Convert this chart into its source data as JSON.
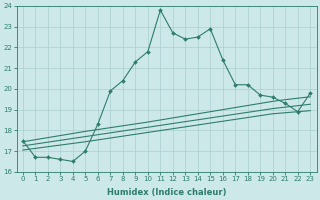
{
  "xlabel": "Humidex (Indice chaleur)",
  "x_values": [
    0,
    1,
    2,
    3,
    4,
    5,
    6,
    7,
    8,
    9,
    10,
    11,
    12,
    13,
    14,
    15,
    16,
    17,
    18,
    19,
    20,
    21,
    22,
    23
  ],
  "main_line": [
    17.5,
    16.7,
    16.7,
    16.6,
    16.5,
    17.0,
    18.3,
    19.9,
    20.4,
    21.3,
    21.8,
    23.8,
    22.7,
    22.4,
    22.5,
    22.9,
    21.4,
    20.2,
    20.2,
    19.7,
    19.6,
    19.3,
    18.9,
    19.8
  ],
  "trend_line1": [
    17.05,
    17.13,
    17.21,
    17.29,
    17.37,
    17.45,
    17.54,
    17.63,
    17.72,
    17.81,
    17.9,
    17.99,
    18.08,
    18.17,
    18.26,
    18.35,
    18.44,
    18.53,
    18.62,
    18.71,
    18.8,
    18.85,
    18.9,
    18.95
  ],
  "trend_line2": [
    17.25,
    17.34,
    17.43,
    17.52,
    17.61,
    17.7,
    17.79,
    17.88,
    17.97,
    18.06,
    18.15,
    18.24,
    18.33,
    18.42,
    18.51,
    18.6,
    18.69,
    18.78,
    18.87,
    18.96,
    19.05,
    19.12,
    19.19,
    19.26
  ],
  "trend_line3": [
    17.45,
    17.55,
    17.65,
    17.75,
    17.85,
    17.95,
    18.04,
    18.13,
    18.22,
    18.31,
    18.4,
    18.5,
    18.6,
    18.7,
    18.8,
    18.9,
    19.0,
    19.1,
    19.2,
    19.3,
    19.4,
    19.48,
    19.55,
    19.62
  ],
  "line_color": "#2e7d6b",
  "bg_color": "#cde8e8",
  "grid_color": "#aacfcf",
  "ylim": [
    16,
    24
  ],
  "xlim": [
    -0.5,
    23.5
  ],
  "yticks": [
    16,
    17,
    18,
    19,
    20,
    21,
    22,
    23,
    24
  ],
  "xticks": [
    0,
    1,
    2,
    3,
    4,
    5,
    6,
    7,
    8,
    9,
    10,
    11,
    12,
    13,
    14,
    15,
    16,
    17,
    18,
    19,
    20,
    21,
    22,
    23
  ],
  "tick_fontsize": 5.0,
  "xlabel_fontsize": 6.0
}
